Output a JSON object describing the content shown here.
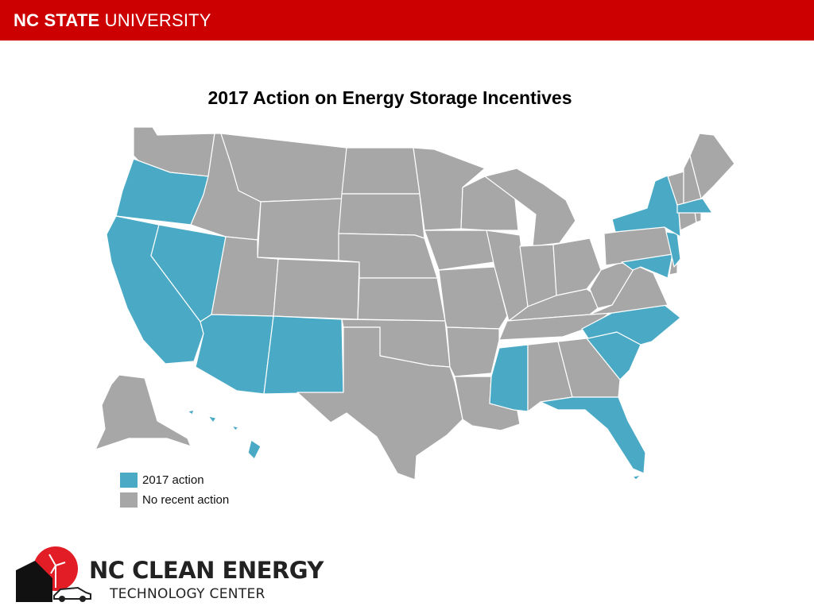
{
  "header": {
    "brand_bold": "NC STATE",
    "brand_rest": "UNIVERSITY",
    "color": "#cc0000"
  },
  "title": "2017 Action on Energy Storage Incentives",
  "map": {
    "region": "United States",
    "action_color": "#4aaac6",
    "no_action_color": "#a8a7a8",
    "states_2017_action": [
      "Oregon",
      "California",
      "Nevada",
      "Arizona",
      "New Mexico",
      "Mississippi",
      "Florida",
      "South Carolina",
      "North Carolina",
      "Maryland",
      "New Jersey",
      "New York",
      "Massachusetts",
      "Hawaii"
    ]
  },
  "legend": [
    {
      "label": "2017 action",
      "color": "#4aaac6"
    },
    {
      "label": "No recent action",
      "color": "#a8a7a8"
    }
  ],
  "footer_logo": {
    "line1": "NC CLEAN ENERGY",
    "line2": "TECHNOLOGY CENTER",
    "accent_color": "#e21d26"
  }
}
